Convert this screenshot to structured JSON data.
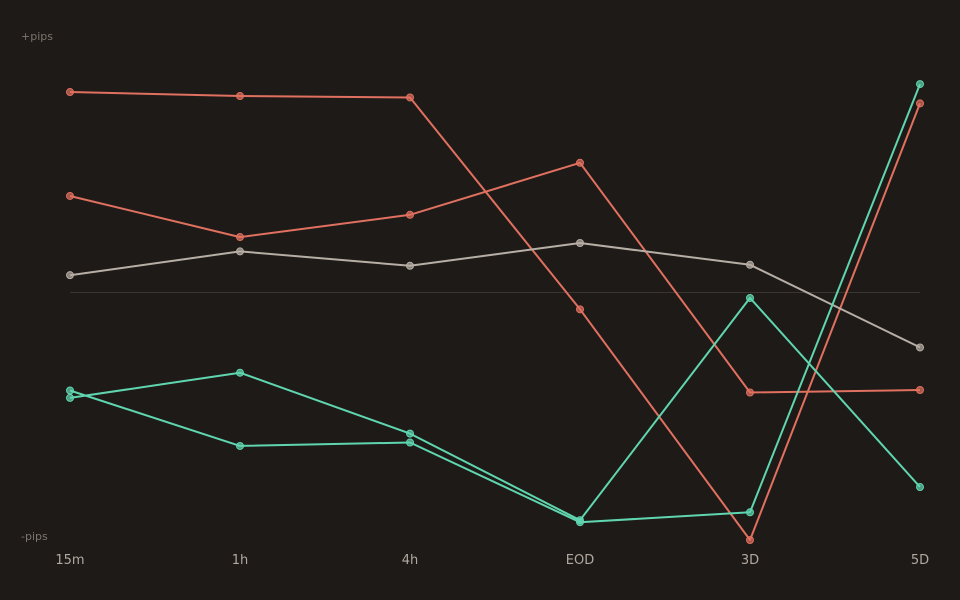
{
  "chart_data": {
    "type": "line",
    "title": "",
    "xlabel": "",
    "ylabel": "",
    "y_top_label": "+pips",
    "y_bottom_label": "-pips",
    "categories": [
      "15m",
      "1h",
      "4h",
      "EOD",
      "3D",
      "5D"
    ],
    "ylim": [
      -100,
      100
    ],
    "zero_line": 0,
    "grid": false,
    "legend": "none",
    "series": [
      {
        "color": "#e0705f",
        "values": [
          81,
          79.4,
          78.8,
          -6.8,
          -100,
          76.4
        ]
      },
      {
        "color": "#e0705f",
        "values": [
          39,
          22.4,
          31.4,
          52.4,
          -40.4,
          -39.4
        ]
      },
      {
        "color": "#b7aea5",
        "values": [
          7,
          16.6,
          10.8,
          20,
          11.2,
          -22.2
        ]
      },
      {
        "color": "#5fd6b0",
        "values": [
          -39.6,
          -62,
          -60.6,
          -92.8,
          -88.8,
          84.2
        ]
      },
      {
        "color": "#5fd6b0",
        "values": [
          -42.6,
          -32.4,
          -57,
          -92,
          -2.2,
          -78.6
        ]
      }
    ],
    "colors": {
      "background": "#1e1a17",
      "zero_line": "#3a3531",
      "tick_text": "#b1a89f",
      "end_label_text": "#7d756e"
    }
  }
}
